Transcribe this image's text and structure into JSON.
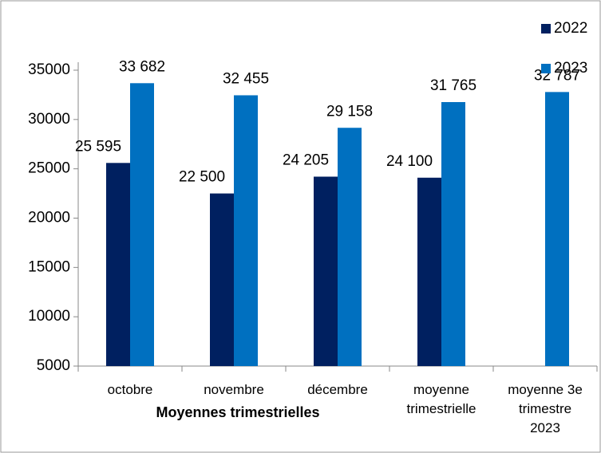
{
  "chart_data": {
    "type": "bar",
    "x_label": "Moyennes trimestrielles",
    "categories": [
      "octobre",
      "novembre",
      "décembre",
      "moyenne trimestrielle",
      "moyenne 3e trimestre 2023"
    ],
    "series": [
      {
        "name": "2022",
        "color": "#002060",
        "values": [
          25595,
          22500,
          24205,
          24100,
          null
        ],
        "value_labels": [
          "25 595",
          "22 500",
          "24 205",
          "24 100",
          null
        ]
      },
      {
        "name": "2023",
        "color": "#0070c0",
        "values": [
          33682,
          32455,
          29158,
          31765,
          32787
        ],
        "value_labels": [
          "33 682",
          "32 455",
          "29 158",
          "31 765",
          "32 787"
        ]
      }
    ],
    "ylim": [
      5000,
      35000
    ],
    "yticks": [
      5000,
      10000,
      15000,
      20000,
      25000,
      30000,
      35000
    ],
    "legend": "top-right"
  }
}
